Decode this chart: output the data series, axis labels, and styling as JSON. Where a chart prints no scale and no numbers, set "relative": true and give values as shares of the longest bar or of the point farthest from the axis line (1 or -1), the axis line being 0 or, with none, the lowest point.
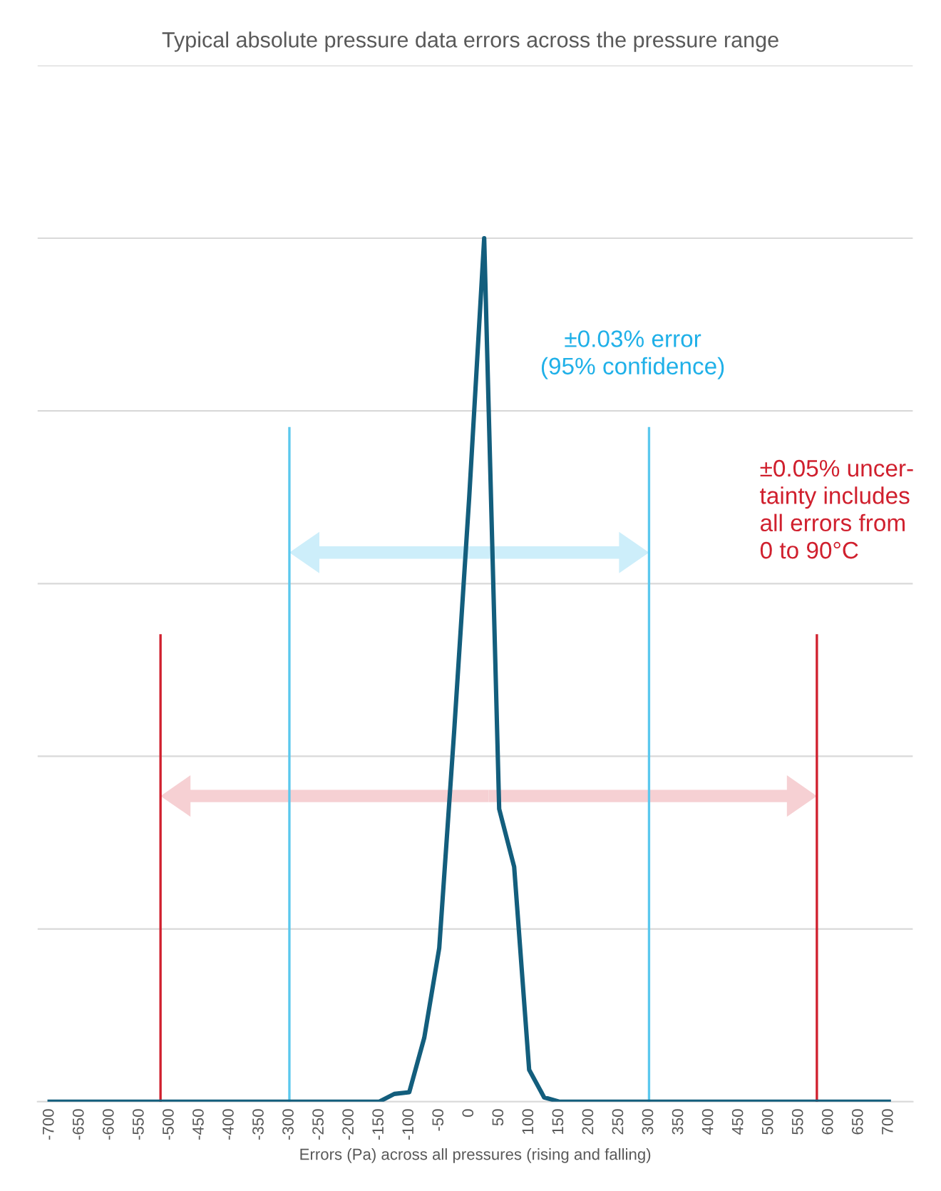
{
  "chart_data": {
    "type": "line",
    "title": "Typical absolute pressure data errors across the pressure range",
    "xlabel": "Errors (Pa) across all pressures (rising and falling)",
    "relative": true,
    "x": [
      -700,
      -675,
      -650,
      -625,
      -600,
      -575,
      -550,
      -525,
      -500,
      -475,
      -450,
      -425,
      -400,
      -375,
      -350,
      -325,
      -300,
      -275,
      -250,
      -225,
      -200,
      -175,
      -150,
      -125,
      -100,
      -75,
      -50,
      -25,
      0,
      25,
      50,
      75,
      100,
      125,
      150,
      175,
      200,
      225,
      250,
      275,
      300,
      325,
      350,
      375,
      400,
      425,
      450,
      475,
      500,
      525,
      550,
      575,
      600,
      625,
      650,
      675,
      700
    ],
    "series": [
      {
        "color": "#135e7d",
        "values": [
          0,
          0,
          0,
          0,
          0,
          0,
          0,
          0,
          0,
          0,
          0,
          0,
          0,
          0,
          0,
          0,
          0,
          0,
          0,
          0,
          0,
          0,
          0,
          0.009,
          0.011,
          0.074,
          0.178,
          0.43,
          0.7,
          1,
          0.339,
          0.272,
          0.037,
          0.005,
          0,
          0,
          0,
          0,
          0,
          0,
          0,
          0,
          0,
          0,
          0,
          0,
          0,
          0,
          0,
          0,
          0,
          0,
          0,
          0,
          0,
          0,
          0
        ]
      }
    ],
    "xlim": [
      -720,
      740
    ],
    "xticks": [
      -700,
      -650,
      -600,
      -550,
      -500,
      -450,
      -400,
      -350,
      -300,
      -250,
      -200,
      -150,
      -100,
      -50,
      0,
      50,
      100,
      150,
      200,
      250,
      300,
      350,
      400,
      450,
      500,
      550,
      600,
      650,
      700
    ],
    "ref_lines": [
      {
        "axis": "x",
        "value": -300,
        "color": "#5bc8ee"
      },
      {
        "axis": "x",
        "value": 300,
        "color": "#5bc8ee"
      },
      {
        "axis": "x",
        "value": -515,
        "color": "#d0202e"
      },
      {
        "axis": "x",
        "value": 580,
        "color": "#d0202e"
      }
    ],
    "annotations": [
      "±0.03% error\n(95% confidence)",
      "±0.05% uncer-\ntainty includes\nall errors from\n0 to 90°C"
    ],
    "grid": "y",
    "marker": "none",
    "line_style": "solid",
    "legend": false
  }
}
